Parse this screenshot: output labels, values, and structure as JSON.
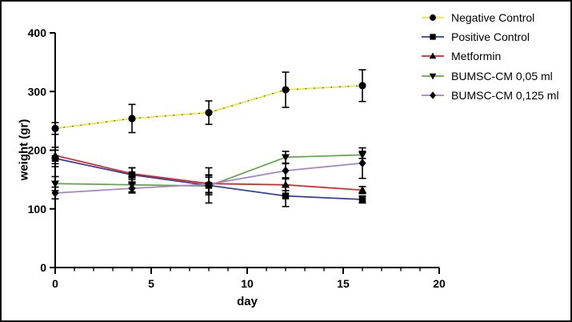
{
  "figure": {
    "background": "#ffffff",
    "border_color": "#111111",
    "axis_color": "#000000",
    "marker_color": "#000000"
  },
  "chart_data": {
    "type": "line",
    "title": "",
    "xlabel": "day",
    "ylabel": "weight (gr)",
    "xlim": [
      0,
      20
    ],
    "ylim": [
      0,
      400
    ],
    "x_ticks": [
      0,
      5,
      10,
      15,
      20
    ],
    "x_minor_tick_step": 1,
    "y_ticks": [
      0,
      100,
      200,
      300,
      400
    ],
    "grid": false,
    "legend_position": "top-right",
    "error_bars": true,
    "x": [
      0,
      4,
      8,
      12,
      16
    ],
    "series": [
      {
        "name": "Negative Control",
        "color": "#f0e431",
        "overlay_dotted": true,
        "marker": "circle",
        "values": [
          237,
          254,
          264,
          303,
          310
        ],
        "errors": [
          10,
          24,
          20,
          30,
          27
        ]
      },
      {
        "name": "Positive Control",
        "color": "#2f3f9f",
        "overlay_dotted": false,
        "marker": "square",
        "values": [
          186,
          158,
          140,
          122,
          116
        ],
        "errors": [
          14,
          12,
          30,
          18,
          6
        ]
      },
      {
        "name": "Metformin",
        "color": "#e02020",
        "overlay_dotted": false,
        "marker": "triangle-up",
        "values": [
          191,
          160,
          143,
          141,
          132
        ],
        "errors": [
          14,
          10,
          15,
          10,
          6
        ]
      },
      {
        "name": "BUMSC-CM 0,05 ml",
        "color": "#61a549",
        "overlay_dotted": false,
        "marker": "triangle-down",
        "values": [
          143,
          141,
          139,
          188,
          192
        ],
        "errors": [
          12,
          12,
          15,
          10,
          6
        ]
      },
      {
        "name": "BUMSC-CM 0,125 ml",
        "color": "#a980ca",
        "overlay_dotted": false,
        "marker": "diamond",
        "values": [
          127,
          135,
          142,
          165,
          178
        ],
        "errors": [
          10,
          8,
          15,
          12,
          26
        ]
      }
    ]
  }
}
